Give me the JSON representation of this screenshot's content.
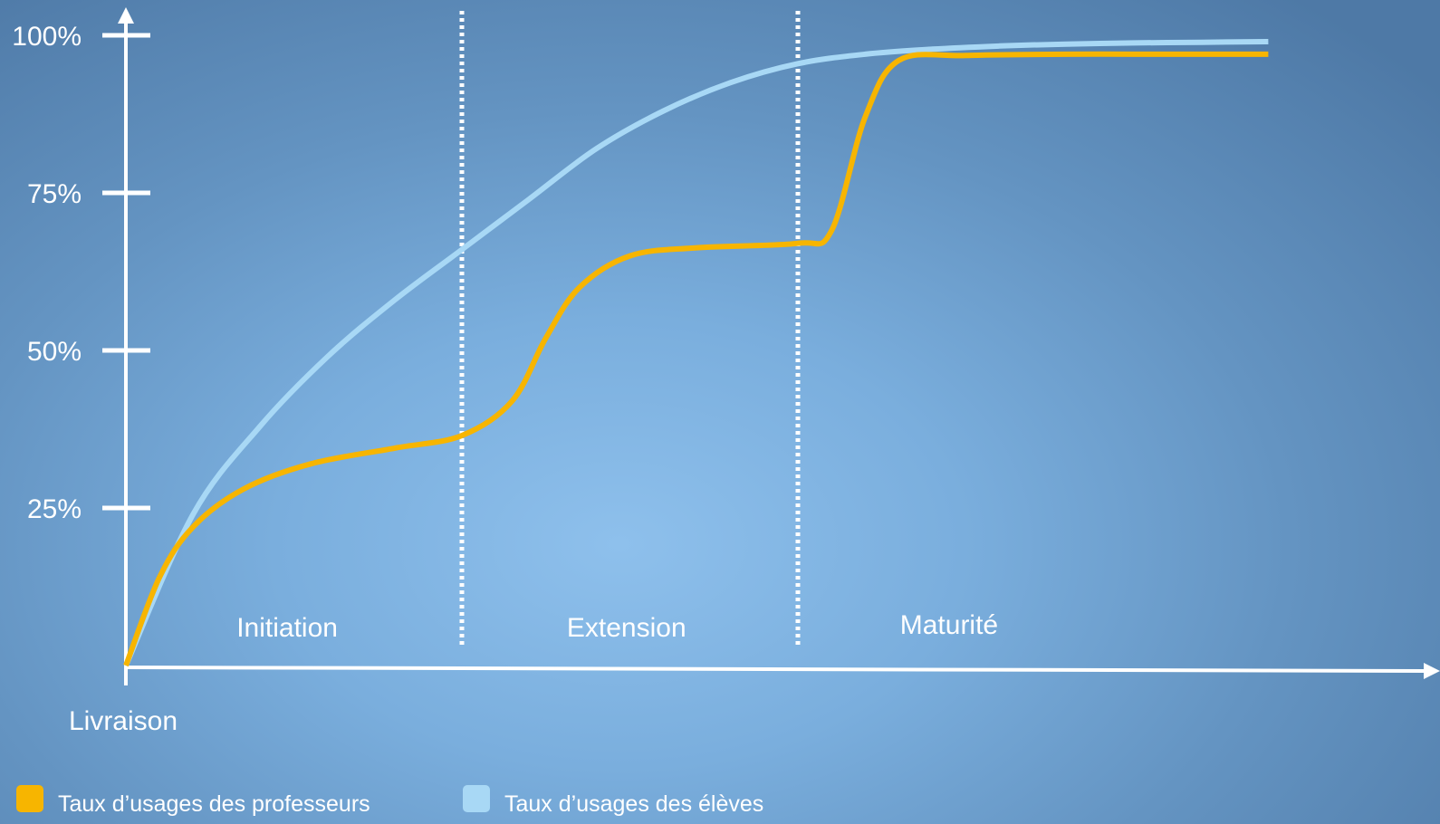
{
  "chart_data": {
    "type": "line",
    "ylabel_ticks": [
      "25%",
      "50%",
      "75%",
      "100%"
    ],
    "y_ticks": [
      25,
      50,
      75,
      100
    ],
    "ylim": [
      0,
      100
    ],
    "x_origin_label": "Livraison",
    "phases": [
      "Initiation",
      "Extension",
      "Maturité"
    ],
    "phase_boundaries": [
      1,
      2
    ],
    "xlim": [
      0,
      3.65
    ],
    "grid": false,
    "legend_position": "bottom-left",
    "series": [
      {
        "name": "Taux d’usages des professeurs",
        "color": "#f7b500",
        "x": [
          0,
          0.1,
          0.2,
          0.35,
          0.55,
          0.8,
          1.0,
          1.15,
          1.25,
          1.35,
          1.5,
          1.7,
          2.0,
          2.1,
          2.2,
          2.3,
          2.5,
          2.8,
          3.1,
          3.4
        ],
        "y": [
          0,
          14,
          22,
          28,
          32,
          34.5,
          36.5,
          42,
          52,
          60,
          65,
          66.3,
          67,
          69,
          87,
          96,
          96.8,
          97,
          97,
          97
        ]
      },
      {
        "name": "Taux d’usages des élèves",
        "color": "#a8d8f5",
        "x": [
          0,
          0.2,
          0.4,
          0.6,
          0.8,
          1.0,
          1.2,
          1.4,
          1.6,
          1.8,
          2.0,
          2.2,
          2.4,
          2.6,
          2.8,
          3.0,
          3.2,
          3.4
        ],
        "y": [
          0,
          24,
          38,
          49,
          58,
          66,
          74,
          82,
          88,
          92.5,
          95.5,
          97,
          97.8,
          98.3,
          98.6,
          98.8,
          98.9,
          99
        ]
      }
    ]
  }
}
